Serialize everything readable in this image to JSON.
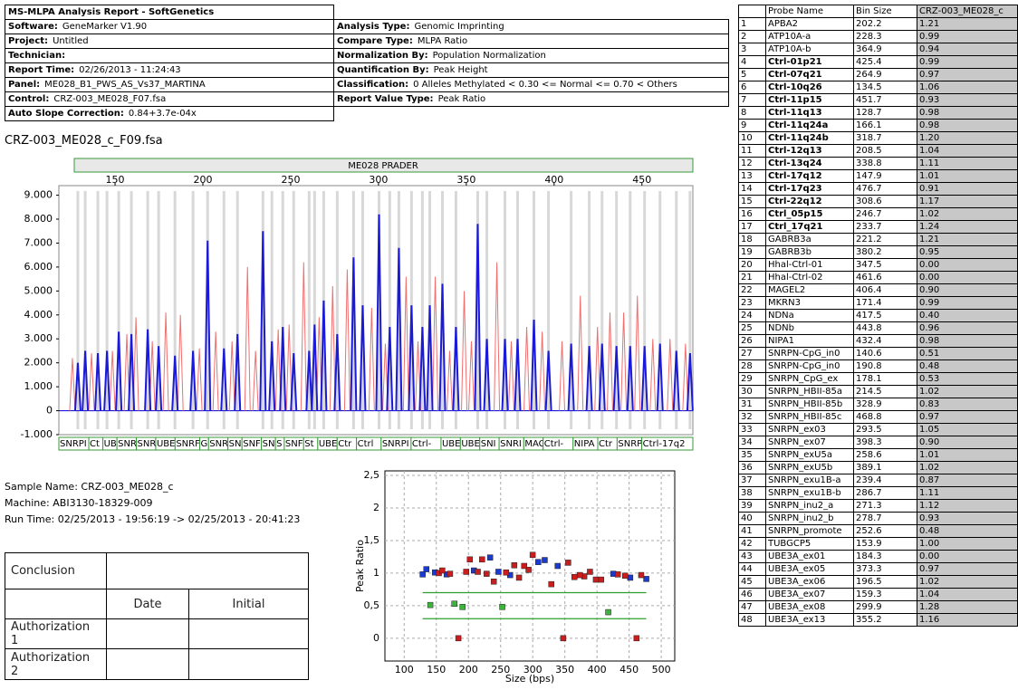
{
  "header": {
    "title": "MS-MLPA Analysis Report  - SoftGenetics",
    "rows": [
      [
        {
          "label": "Software:",
          "value": "GeneMarker V1.90"
        },
        {
          "label": "Analysis Type:",
          "value": "Genomic Imprinting"
        }
      ],
      [
        {
          "label": "Project:",
          "value": "Untitled"
        },
        {
          "label": "Compare Type:",
          "value": "MLPA Ratio"
        }
      ],
      [
        {
          "label": "Technician:"
        },
        {
          "label": "Normalization By:",
          "value": "Population Normalization"
        }
      ],
      [
        {
          "label": "Report Time:",
          "value": "02/26/2013 - 11:24:43"
        },
        {
          "label": "Quantification By:",
          "value": "Peak Height"
        }
      ],
      [
        {
          "label": "Panel:",
          "value": "ME028_B1_PWS_AS_Vs37_MARTINA"
        },
        {
          "label": "Classification:",
          "value": "0 Alleles Methylated < 0.30 <= Normal <= 0.70 < Others"
        }
      ],
      [
        {
          "label": "Control:",
          "value": "CRZ-003_ME028_F07.fsa"
        },
        {
          "label": "Report Value Type:",
          "value": "Peak Ratio"
        }
      ],
      [
        {
          "label": "Auto Slope Correction:",
          "value": "0.84+3.7e-04x"
        }
      ]
    ]
  },
  "sample_file": "CRZ-003_ME028_c_F09.fsa",
  "electropherogram": {
    "type": "peaks",
    "panel_title": "ME028 PRADER",
    "xlim": [
      118,
      479
    ],
    "xticks": [
      150,
      200,
      250,
      300,
      350,
      400,
      450
    ],
    "ylim": [
      -1000,
      9400
    ],
    "yticks": [
      {
        "value": 9000,
        "label": "9.000"
      },
      {
        "value": 8000,
        "label": "8.000"
      },
      {
        "value": 7000,
        "label": "7.000"
      },
      {
        "value": 6000,
        "label": "6.000"
      },
      {
        "value": 5000,
        "label": "5.000"
      },
      {
        "value": 4000,
        "label": "4.000"
      },
      {
        "value": 3000,
        "label": "3.000"
      },
      {
        "value": 2000,
        "label": "2.000"
      },
      {
        "value": 1000,
        "label": "1.000"
      },
      0,
      {
        "value": -1000,
        "label": "-1.000"
      }
    ],
    "series": [
      {
        "color": "#f07070",
        "x": [
          125.7,
          136.6,
          148.5,
          156.7,
          161.9,
          171.2,
          178.9,
          187.2,
          198.0,
          207.3,
          216.6,
          225.4,
          230.0,
          242.9,
          249.1,
          257.4,
          266.2,
          273.9,
          282.2,
          296.1,
          303.9,
          315.7,
          322.5,
          332.3,
          340.5,
          348.8,
          352.9,
          367.4,
          375.6,
          384.4,
          393.2,
          404.5,
          414.9,
          424.7,
          431.8,
          439.6,
          447.4,
          456.2,
          466.0,
          474.8
        ],
        "values": [
          2200,
          2400,
          2500,
          3200,
          3900,
          2900,
          4100,
          4000,
          2600,
          3300,
          2900,
          6000,
          2500,
          3400,
          3600,
          6200,
          3900,
          5200,
          5900,
          4300,
          2800,
          5600,
          2900,
          5600,
          2500,
          5000,
          2900,
          6200,
          2900,
          3500,
          3300,
          2900,
          4800,
          3500,
          4100,
          4100,
          4800,
          3000,
          3000,
          2800
        ]
      },
      {
        "color": "#1a1ad8",
        "x": [
          128.8,
          133.0,
          140.2,
          145.4,
          152.1,
          159.3,
          168.6,
          174.8,
          184.1,
          194.4,
          202.7,
          212.0,
          219.7,
          234.2,
          239.3,
          245.5,
          251.7,
          260.5,
          263.6,
          268.8,
          276.5,
          285.8,
          291.0,
          300.3,
          306.4,
          311.6,
          318.8,
          325.0,
          329.2,
          336.4,
          344.1,
          356.5,
          361.7,
          372.0,
          379.2,
          388.5,
          396.8,
          409.7,
          420.0,
          427.3,
          435.5,
          443.3,
          451.5,
          460.3,
          469.6,
          477.4
        ],
        "values": [
          2000,
          2500,
          2400,
          2500,
          3300,
          3200,
          3400,
          2700,
          2300,
          2500,
          7100,
          2600,
          3200,
          7500,
          2900,
          3500,
          2400,
          2500,
          3600,
          4600,
          3200,
          6400,
          4400,
          8200,
          3500,
          6800,
          4400,
          3500,
          4400,
          5300,
          3500,
          7800,
          3000,
          3000,
          3000,
          3800,
          2500,
          2800,
          2700,
          2800,
          2700,
          2700,
          2700,
          2800,
          2500,
          2400
        ]
      }
    ],
    "probe_labels": [
      "SNRPI",
      "Ct",
      "UB",
      "SNR",
      "SNR",
      "UBE",
      "SNRF",
      "G",
      "SNR",
      "SN",
      "SNF",
      "SN",
      "S",
      "SNF",
      "St",
      "UBE",
      "Ctr",
      "Ctrl",
      "SNRPI",
      "Ctrl-",
      "UBE",
      "UBE",
      "SNI",
      "SNRI",
      "MAG",
      "Ctrl-",
      "NIPA",
      "Ctr",
      "SNRP",
      "Ctrl-17q2"
    ]
  },
  "sample_info": [
    "Sample Name: CRZ-003_ME028_c",
    "Machine: ABI3130-18329-009",
    "Run Time: 02/25/2013 - 19:56:19 -> 02/25/2013 - 20:41:23"
  ],
  "conclusion_table": {
    "conclusion": "Conclusion",
    "date": "Date",
    "initial": "Initial",
    "authorizations": [
      "Authorization 1",
      "Authorization 2"
    ]
  },
  "ratio_plot": {
    "type": "scatter",
    "ylabel": "Peak Ratio",
    "xlabel": "Size (bps)",
    "xlim": [
      70,
      521
    ],
    "xticks": [
      100,
      150,
      200,
      250,
      300,
      350,
      400,
      450,
      500
    ],
    "ylim": [
      -0.35,
      2.57
    ],
    "yticks": [
      0,
      {
        "value": 0.5,
        "label": "0,5"
      },
      1,
      {
        "value": 1.5,
        "label": "1,5"
      },
      2,
      {
        "value": 2.5,
        "label": "2,5"
      }
    ],
    "thresholds": [
      0.3,
      0.7
    ],
    "colors": {
      "control": "#1a3ad0",
      "normal": "#c81e1e",
      "flagged": "#3cb43c"
    }
  },
  "report_table": {
    "columns": [
      "Probe Name",
      "Bin Size",
      "CRZ-003_ME028_c"
    ],
    "rows": [
      {
        "no": 1,
        "probe": "APBA2",
        "bin": 202.2,
        "ratio": "1.21"
      },
      {
        "no": 2,
        "probe": "ATP10A-a",
        "bin": 228.3,
        "ratio": "0.99"
      },
      {
        "no": 3,
        "probe": "ATP10A-b",
        "bin": 364.9,
        "ratio": "0.94"
      },
      {
        "no": 4,
        "probe": "Ctrl-01p21",
        "bin": 425.4,
        "ratio": "0.99",
        "bold": true
      },
      {
        "no": 5,
        "probe": "Ctrl-07q21",
        "bin": 264.9,
        "ratio": "0.97",
        "bold": true
      },
      {
        "no": 6,
        "probe": "Ctrl-10q26",
        "bin": 134.5,
        "ratio": "1.06",
        "bold": true
      },
      {
        "no": 7,
        "probe": "Ctrl-11p15",
        "bin": 451.7,
        "ratio": "0.93",
        "bold": true
      },
      {
        "no": 8,
        "probe": "Ctrl-11q13",
        "bin": 128.7,
        "ratio": "0.98",
        "bold": true
      },
      {
        "no": 9,
        "probe": "Ctrl-11q24a",
        "bin": 166.1,
        "ratio": "0.98",
        "bold": true
      },
      {
        "no": 10,
        "probe": "Ctrl-11q24b",
        "bin": 318.7,
        "ratio": "1.20",
        "bold": true
      },
      {
        "no": 11,
        "probe": "Ctrl-12q13",
        "bin": 208.5,
        "ratio": "1.04",
        "bold": true
      },
      {
        "no": 12,
        "probe": "Ctrl-13q24",
        "bin": 338.8,
        "ratio": "1.11",
        "bold": true
      },
      {
        "no": 13,
        "probe": "Ctrl-17q12",
        "bin": 147.9,
        "ratio": "1.01",
        "bold": true
      },
      {
        "no": 14,
        "probe": "Ctrl-17q23",
        "bin": 476.7,
        "ratio": "0.91",
        "bold": true
      },
      {
        "no": 15,
        "probe": "Ctrl-22q12",
        "bin": 308.6,
        "ratio": "1.17",
        "bold": true
      },
      {
        "no": 16,
        "probe": "Ctrl_05p15",
        "bin": 246.7,
        "ratio": "1.02",
        "bold": true
      },
      {
        "no": 17,
        "probe": "Ctrl_17q21",
        "bin": 233.7,
        "ratio": "1.24",
        "bold": true
      },
      {
        "no": 18,
        "probe": "GABRB3a",
        "bin": 221.2,
        "ratio": "1.21"
      },
      {
        "no": 19,
        "probe": "GABRB3b",
        "bin": 380.2,
        "ratio": "0.95"
      },
      {
        "no": 20,
        "probe": "Hhal-Ctrl-01",
        "bin": 347.5,
        "ratio": "0.00"
      },
      {
        "no": 21,
        "probe": "Hhal-Ctrl-02",
        "bin": 461.6,
        "ratio": "0.00"
      },
      {
        "no": 22,
        "probe": "MAGEL2",
        "bin": 406.4,
        "ratio": "0.90"
      },
      {
        "no": 23,
        "probe": "MKRN3",
        "bin": 171.4,
        "ratio": "0.99"
      },
      {
        "no": 24,
        "probe": "NDNa",
        "bin": 417.5,
        "ratio": "0.40"
      },
      {
        "no": 25,
        "probe": "NDNb",
        "bin": 443.8,
        "ratio": "0.96"
      },
      {
        "no": 26,
        "probe": "NIPA1",
        "bin": 432.4,
        "ratio": "0.98"
      },
      {
        "no": 27,
        "probe": "SNRPN-CpG_in0",
        "bin": 140.6,
        "ratio": "0.51"
      },
      {
        "no": 28,
        "probe": "SNRPN-CpG_in0",
        "bin": 190.8,
        "ratio": "0.48"
      },
      {
        "no": 29,
        "probe": "SNRPN_CpG_ex",
        "bin": 178.1,
        "ratio": "0.53"
      },
      {
        "no": 30,
        "probe": "SNRPN_HBII-85a",
        "bin": 214.5,
        "ratio": "1.02"
      },
      {
        "no": 31,
        "probe": "SNRPN_HBII-85b",
        "bin": 328.9,
        "ratio": "0.83"
      },
      {
        "no": 32,
        "probe": "SNRPN_HBII-85c",
        "bin": 468.8,
        "ratio": "0.97"
      },
      {
        "no": 33,
        "probe": "SNRPN_ex03",
        "bin": 293.5,
        "ratio": "1.05"
      },
      {
        "no": 34,
        "probe": "SNRPN_ex07",
        "bin": 398.3,
        "ratio": "0.90"
      },
      {
        "no": 35,
        "probe": "SNRPN_exU5a",
        "bin": 258.6,
        "ratio": "1.01"
      },
      {
        "no": 36,
        "probe": "SNRPN_exU5b",
        "bin": 389.1,
        "ratio": "1.02"
      },
      {
        "no": 37,
        "probe": "SNRPN_exu1B-a",
        "bin": 239.4,
        "ratio": "0.87"
      },
      {
        "no": 38,
        "probe": "SNRPN_exu1B-b",
        "bin": 286.7,
        "ratio": "1.11"
      },
      {
        "no": 39,
        "probe": "SNRPN_inu2_a",
        "bin": 271.3,
        "ratio": "1.12"
      },
      {
        "no": 40,
        "probe": "SNRPN_inu2_b",
        "bin": 278.7,
        "ratio": "0.93"
      },
      {
        "no": 41,
        "probe": "SNRPN_promote",
        "bin": 252.6,
        "ratio": "0.48"
      },
      {
        "no": 42,
        "probe": "TUBGCP5",
        "bin": 153.9,
        "ratio": "1.00"
      },
      {
        "no": 43,
        "probe": "UBE3A_ex01",
        "bin": 184.3,
        "ratio": "0.00"
      },
      {
        "no": 44,
        "probe": "UBE3A_ex05",
        "bin": 373.3,
        "ratio": "0.97"
      },
      {
        "no": 45,
        "probe": "UBE3A_ex06",
        "bin": 196.5,
        "ratio": "1.02"
      },
      {
        "no": 46,
        "probe": "UBE3A_ex07",
        "bin": 159.3,
        "ratio": "1.04"
      },
      {
        "no": 47,
        "probe": "UBE3A_ex08",
        "bin": 299.9,
        "ratio": "1.28"
      },
      {
        "no": 48,
        "probe": "UBE3A_ex13",
        "bin": 355.2,
        "ratio": "1.16"
      }
    ]
  }
}
